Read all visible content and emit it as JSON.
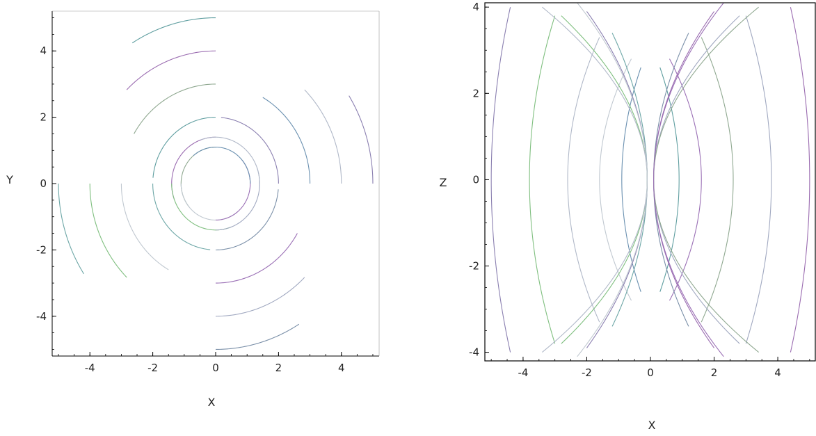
{
  "colors": {
    "axis": "#000000",
    "palette": [
      "#5f9ea0",
      "#6ca6a6",
      "#7a8fa8",
      "#8a7fb0",
      "#9a6bb0",
      "#7fbf7f",
      "#a0a8c0",
      "#b0b8c8",
      "#8fa890",
      "#c0c8d0",
      "#9a6fb5",
      "#6a90b0"
    ]
  },
  "chart_data": [
    {
      "type": "line",
      "title": "",
      "xlabel": "X",
      "ylabel": "Y",
      "xlim": [
        -5.2,
        5.2
      ],
      "ylim": [
        -5.2,
        5.2
      ],
      "xticks": [
        -4,
        -2,
        0,
        2,
        4
      ],
      "yticks": [
        -4,
        -2,
        0,
        2,
        4
      ],
      "xtick_labels": [
        "-4",
        "-2",
        "0",
        "2",
        "4"
      ],
      "ytick_labels": [
        "-4",
        "-2",
        "0",
        "2",
        "4"
      ],
      "frame": "partial",
      "grid": false,
      "legend": "none",
      "series": [
        {
          "r": 5,
          "theta_start_deg": 90,
          "theta_end_deg": 122
        },
        {
          "r": 5,
          "theta_start_deg": 180,
          "theta_end_deg": 213
        },
        {
          "r": 5,
          "theta_start_deg": 270,
          "theta_end_deg": 302
        },
        {
          "r": 5,
          "theta_start_deg": 0,
          "theta_end_deg": 32
        },
        {
          "r": 4,
          "theta_start_deg": 90,
          "theta_end_deg": 135
        },
        {
          "r": 4,
          "theta_start_deg": 180,
          "theta_end_deg": 225
        },
        {
          "r": 4,
          "theta_start_deg": 270,
          "theta_end_deg": 315
        },
        {
          "r": 4,
          "theta_start_deg": 0,
          "theta_end_deg": 45
        },
        {
          "r": 3,
          "theta_start_deg": 90,
          "theta_end_deg": 150
        },
        {
          "r": 3,
          "theta_start_deg": 180,
          "theta_end_deg": 240
        },
        {
          "r": 3,
          "theta_start_deg": 270,
          "theta_end_deg": 330
        },
        {
          "r": 3,
          "theta_start_deg": 0,
          "theta_end_deg": 60
        },
        {
          "r": 2,
          "theta_start_deg": 90,
          "theta_end_deg": 175
        },
        {
          "r": 2,
          "theta_start_deg": 180,
          "theta_end_deg": 265
        },
        {
          "r": 2,
          "theta_start_deg": 270,
          "theta_end_deg": 355
        },
        {
          "r": 2,
          "theta_start_deg": 0,
          "theta_end_deg": 85
        },
        {
          "r": 1.4,
          "theta_start_deg": 90,
          "theta_end_deg": 200
        },
        {
          "r": 1.4,
          "theta_start_deg": 180,
          "theta_end_deg": 290
        },
        {
          "r": 1.4,
          "theta_start_deg": 270,
          "theta_end_deg": 20
        },
        {
          "r": 1.4,
          "theta_start_deg": 0,
          "theta_end_deg": 110
        },
        {
          "r": 1.1,
          "theta_start_deg": 90,
          "theta_end_deg": 220
        },
        {
          "r": 1.1,
          "theta_start_deg": 180,
          "theta_end_deg": 310
        },
        {
          "r": 1.1,
          "theta_start_deg": 270,
          "theta_end_deg": 40
        },
        {
          "r": 1.1,
          "theta_start_deg": 0,
          "theta_end_deg": 130
        }
      ]
    },
    {
      "type": "line",
      "title": "",
      "xlabel": "X",
      "ylabel": "Z",
      "xlim": [
        -5.2,
        5.2
      ],
      "ylim": [
        -4.2,
        4.1
      ],
      "xticks": [
        -4,
        -2,
        0,
        2,
        4
      ],
      "yticks": [
        -4,
        -2,
        0,
        2,
        4
      ],
      "xtick_labels": [
        "-4",
        "-2",
        "0",
        "2",
        "4"
      ],
      "ytick_labels": [
        "-4",
        "-2",
        "0",
        "2",
        "4"
      ],
      "frame": "box",
      "grid": false,
      "legend": "none",
      "series": [
        {
          "x_mid": -5.0,
          "x_end": -4.4,
          "z_half": 4.0
        },
        {
          "x_mid": 5.0,
          "x_end": 4.4,
          "z_half": 4.0
        },
        {
          "x_mid": -3.8,
          "x_end": -3.0,
          "z_half": 3.8
        },
        {
          "x_mid": 3.8,
          "x_end": 3.0,
          "z_half": 3.8
        },
        {
          "x_mid": -2.6,
          "x_end": -1.6,
          "z_half": 3.3
        },
        {
          "x_mid": 2.6,
          "x_end": 1.6,
          "z_half": 3.3
        },
        {
          "x_mid": -1.6,
          "x_end": -0.6,
          "z_half": 2.8
        },
        {
          "x_mid": 1.6,
          "x_end": 0.6,
          "z_half": 2.8
        },
        {
          "x_mid": -0.9,
          "x_end": -0.3,
          "z_half": 2.6
        },
        {
          "x_mid": 0.9,
          "x_end": 0.3,
          "z_half": 2.6
        },
        {
          "x_mid": -0.1,
          "x_end": -1.2,
          "z_half": 3.4
        },
        {
          "x_mid": 0.1,
          "x_end": 1.2,
          "z_half": 3.4
        },
        {
          "x_mid": -0.1,
          "x_end": -2.0,
          "z_half": 3.9
        },
        {
          "x_mid": 0.1,
          "x_end": 2.0,
          "z_half": 3.9
        },
        {
          "x_mid": -0.1,
          "x_end": -2.8,
          "z_half": 3.8
        },
        {
          "x_mid": 0.1,
          "x_end": 2.8,
          "z_half": 3.8
        },
        {
          "x_mid": -0.1,
          "x_end": -3.4,
          "z_half": 4.0
        },
        {
          "x_mid": 0.1,
          "x_end": 3.4,
          "z_half": 4.0
        },
        {
          "x_mid": -0.1,
          "x_end": -2.3,
          "z_half": 4.1
        },
        {
          "x_mid": 0.1,
          "x_end": 2.3,
          "z_half": 4.1
        }
      ]
    }
  ]
}
